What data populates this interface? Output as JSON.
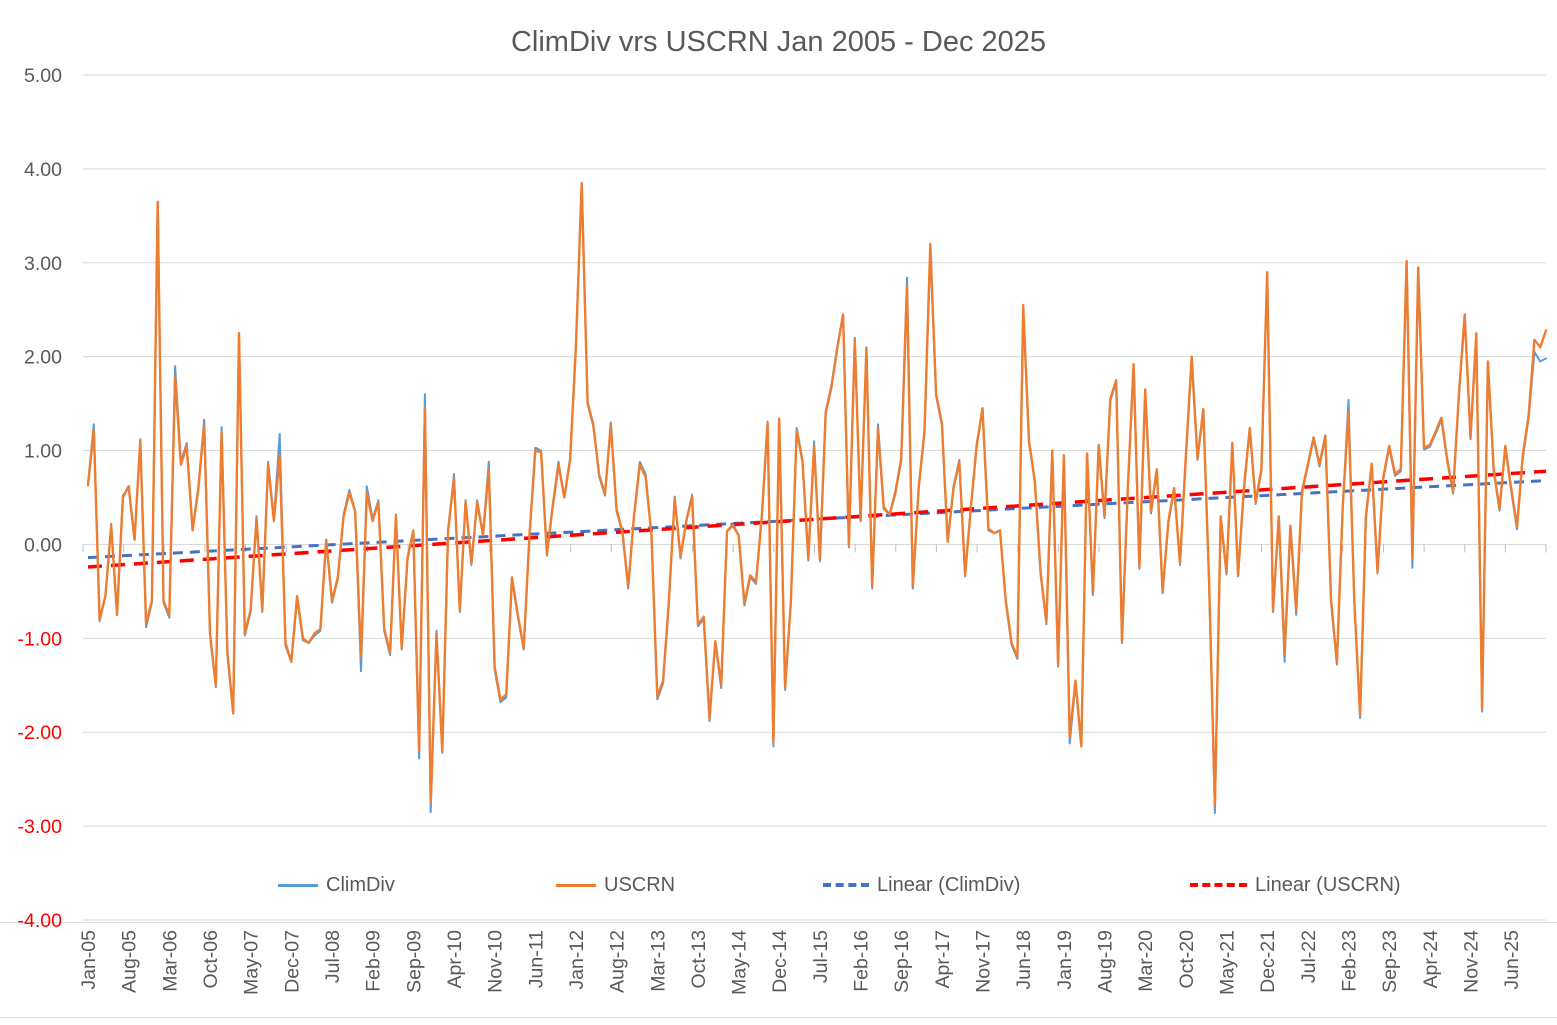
{
  "title": "ClimDiv vrs USCRN Jan 2005 - Dec 2025",
  "legend": {
    "items": [
      {
        "label": "ClimDiv",
        "marker": "solid-blue-line",
        "color": "#5B9BD5"
      },
      {
        "label": "USCRN",
        "marker": "solid-orange-line",
        "color": "#ED7D31"
      },
      {
        "label": "Linear (ClimDiv)",
        "marker": "dashed-blue-line",
        "color": "#4472C4"
      },
      {
        "label": "Linear (USCRN)",
        "marker": "dashed-red-line",
        "color": "#FF0000"
      }
    ]
  },
  "axis_style": {
    "positive_label_color": "#595959",
    "negative_label_color": "#FF0000",
    "grid_color": "#D9D9D9",
    "tick_color": "#BFBFBF",
    "x_label_color": "#595959"
  },
  "chart_data": {
    "type": "line",
    "title": "ClimDiv vrs USCRN Jan 2005 - Dec 2025",
    "xlabel": "",
    "ylabel": "",
    "ylim": [
      -4,
      5
    ],
    "grid": true,
    "legend_position": "bottom",
    "months_total": 252,
    "x_first_month": "Jan-05",
    "x_last_month": "Dec-25",
    "x_tick_interval_months": 7,
    "y_tick_labels": [
      "5.00",
      "4.00",
      "3.00",
      "2.00",
      "1.00",
      "0.00",
      "-1.00",
      "-2.00",
      "-3.00",
      "-4.00"
    ],
    "x_tick_labels": [
      "Jan-05",
      "Aug-05",
      "Mar-06",
      "Oct-06",
      "May-07",
      "Dec-07",
      "Jul-08",
      "Feb-09",
      "Sep-09",
      "Apr-10",
      "Nov-10",
      "Jun-11",
      "Jan-12",
      "Aug-12",
      "Mar-13",
      "Oct-13",
      "May-14",
      "Dec-14",
      "Jul-15",
      "Feb-16",
      "Sep-16",
      "Apr-17",
      "Nov-17",
      "Jun-18",
      "Jan-19",
      "Aug-19",
      "Mar-20",
      "Oct-20",
      "May-21",
      "Dec-21",
      "Jul-22",
      "Feb-23",
      "Sep-23",
      "Apr-24",
      "Nov-24",
      "Jun-25"
    ],
    "series": [
      {
        "name": "ClimDiv",
        "color": "#5B9BD5",
        "width": 2,
        "values": [
          0.65,
          1.28,
          -0.82,
          -0.55,
          0.22,
          -0.73,
          0.52,
          0.6,
          0.05,
          1.12,
          -0.88,
          -0.62,
          3.65,
          -0.62,
          -0.78,
          1.9,
          0.88,
          1.08,
          0.15,
          0.62,
          1.33,
          -0.97,
          -1.52,
          1.25,
          -1.18,
          -1.8,
          2.25,
          -0.97,
          -0.72,
          0.3,
          -0.72,
          0.88,
          0.27,
          1.18,
          -1.08,
          -1.25,
          -0.57,
          -1.02,
          -1.05,
          -0.97,
          -0.92,
          0.05,
          -0.62,
          -0.37,
          0.32,
          0.58,
          0.35,
          -1.35,
          0.62,
          0.27,
          0.47,
          -0.92,
          -1.18,
          0.32,
          -1.12,
          -0.17,
          0.15,
          -2.28,
          1.6,
          -2.85,
          -0.92,
          -2.22,
          0.15,
          0.75,
          -0.72,
          0.47,
          -0.22,
          0.47,
          0.1,
          0.88,
          -1.33,
          -1.68,
          -1.63,
          -0.37,
          -0.77,
          -1.12,
          0.1,
          1.03,
          1.0,
          -0.12,
          0.42,
          0.88,
          0.5,
          0.92,
          2.12,
          3.85,
          1.52,
          1.28,
          0.72,
          0.52,
          1.3,
          0.35,
          0.12,
          -0.47,
          0.3,
          0.88,
          0.75,
          0.1,
          -1.65,
          -1.48,
          -0.62,
          0.51,
          -0.15,
          0.25,
          0.53,
          -0.87,
          -0.8,
          -1.88,
          -1.05,
          -1.53,
          0.14,
          0.22,
          0.1,
          -0.65,
          -0.35,
          -0.42,
          0.3,
          1.31,
          -2.15,
          1.3,
          -1.55,
          -0.62,
          1.24,
          0.9,
          -0.17,
          1.1,
          -0.18,
          1.42,
          1.7,
          2.11,
          2.45,
          -0.03,
          2.2,
          0.25,
          2.1,
          -0.47,
          1.28,
          0.4,
          0.32,
          0.57,
          0.92,
          2.84,
          -0.47,
          0.62,
          1.22,
          3.12,
          1.58,
          1.27,
          0.03,
          0.62,
          0.9,
          -0.34,
          0.4,
          1.07,
          1.45,
          0.15,
          0.12,
          0.15,
          -0.62,
          -1.07,
          -1.22,
          2.5,
          1.08,
          0.66,
          -0.32,
          -0.85,
          0.98,
          -1.3,
          0.92,
          -2.12,
          -1.48,
          -2.15,
          0.95,
          -0.54,
          1.04,
          0.28,
          1.53,
          1.73,
          -1.05,
          0.58,
          1.9,
          -0.26,
          1.63,
          0.33,
          0.78,
          -0.52,
          0.23,
          0.58,
          -0.22,
          0.93,
          1.95,
          0.9,
          1.42,
          -0.42,
          -2.86,
          0.28,
          -0.32,
          1.06,
          -0.34,
          0.58,
          1.22,
          0.43,
          0.78,
          2.88,
          -0.72,
          0.28,
          -1.25,
          0.18,
          -0.75,
          0.55,
          0.83,
          1.12,
          0.83,
          1.14,
          -0.62,
          -1.28,
          0.38,
          1.54,
          -0.62,
          -1.85,
          0.28,
          0.84,
          -0.31,
          0.7,
          1.03,
          0.73,
          0.78,
          3.0,
          -0.25,
          2.93,
          1.01,
          1.04,
          1.18,
          1.33,
          0.88,
          0.54,
          1.58,
          2.43,
          1.12,
          2.2,
          -1.78,
          1.93,
          0.78,
          0.36,
          1.03,
          0.58,
          0.16,
          0.92,
          1.34,
          2.05,
          1.95,
          1.98
        ]
      },
      {
        "name": "USCRN",
        "color": "#ED7D31",
        "width": 2.4,
        "values": [
          0.63,
          1.22,
          -0.8,
          -0.55,
          0.2,
          -0.75,
          0.5,
          0.62,
          0.05,
          1.1,
          -0.85,
          -0.6,
          3.65,
          -0.6,
          -0.75,
          1.78,
          0.85,
          1.05,
          0.15,
          0.6,
          1.28,
          -0.95,
          -1.5,
          1.2,
          -1.15,
          -1.8,
          2.25,
          -0.95,
          -0.7,
          0.28,
          -0.7,
          0.85,
          0.25,
          0.95,
          -1.05,
          -1.25,
          -0.55,
          -1.0,
          -1.05,
          -0.95,
          -0.9,
          0.05,
          -0.6,
          -0.35,
          0.3,
          0.55,
          0.35,
          -1.2,
          0.55,
          0.25,
          0.45,
          -0.9,
          -1.15,
          0.3,
          -1.1,
          -0.15,
          0.15,
          -2.2,
          1.45,
          -2.75,
          -0.95,
          -2.2,
          0.15,
          0.7,
          -0.7,
          0.45,
          -0.2,
          0.45,
          0.1,
          0.8,
          -1.3,
          -1.65,
          -1.6,
          -0.35,
          -0.75,
          -1.1,
          0.1,
          1.0,
          0.98,
          -0.1,
          0.4,
          0.85,
          0.5,
          0.9,
          2.1,
          3.85,
          1.5,
          1.26,
          0.74,
          0.54,
          1.28,
          0.37,
          0.14,
          -0.45,
          0.3,
          0.85,
          0.72,
          0.1,
          -1.62,
          -1.45,
          -0.6,
          0.49,
          -0.13,
          0.25,
          0.51,
          -0.85,
          -0.77,
          -1.85,
          -1.03,
          -1.5,
          0.14,
          0.2,
          0.1,
          -0.63,
          -0.33,
          -0.4,
          0.3,
          1.29,
          -2.1,
          1.34,
          -1.53,
          -0.6,
          1.22,
          0.88,
          -0.15,
          1.04,
          -0.16,
          1.4,
          1.68,
          2.09,
          2.45,
          -0.01,
          2.18,
          0.25,
          2.08,
          -0.45,
          1.23,
          0.38,
          0.32,
          0.55,
          0.9,
          2.75,
          -0.45,
          0.6,
          1.2,
          3.2,
          1.6,
          1.29,
          0.03,
          0.6,
          0.88,
          -0.32,
          0.4,
          1.05,
          1.45,
          0.17,
          0.12,
          0.15,
          -0.6,
          -1.05,
          -1.2,
          2.55,
          1.1,
          0.68,
          -0.3,
          -0.83,
          1.0,
          -1.28,
          0.95,
          -2.05,
          -1.45,
          -2.15,
          0.97,
          -0.52,
          1.06,
          0.3,
          1.55,
          1.75,
          -1.03,
          0.6,
          1.92,
          -0.24,
          1.65,
          0.35,
          0.8,
          -0.5,
          0.25,
          0.6,
          -0.2,
          0.95,
          2.0,
          0.92,
          1.44,
          -0.4,
          -2.78,
          0.3,
          -0.3,
          1.08,
          -0.32,
          0.6,
          1.24,
          0.45,
          0.8,
          2.9,
          -0.7,
          0.3,
          -1.16,
          0.2,
          -0.7,
          0.57,
          0.85,
          1.14,
          0.85,
          1.16,
          -0.6,
          -1.26,
          0.4,
          1.41,
          -0.6,
          -1.82,
          0.3,
          0.86,
          -0.29,
          0.72,
          1.05,
          0.75,
          0.8,
          3.02,
          -0.15,
          2.95,
          1.03,
          1.06,
          1.2,
          1.35,
          0.9,
          0.56,
          1.6,
          2.45,
          1.14,
          2.25,
          -1.75,
          1.95,
          0.8,
          0.38,
          1.05,
          0.6,
          0.19,
          0.95,
          1.37,
          2.18,
          2.1,
          2.28
        ]
      }
    ],
    "trendlines": [
      {
        "name": "Linear (ClimDiv)",
        "color": "#4472C4",
        "start": -0.14,
        "end": 0.68,
        "dash": "10 7",
        "width": 3
      },
      {
        "name": "Linear (USCRN)",
        "color": "#FF0000",
        "start": -0.24,
        "end": 0.78,
        "dash": "14 9",
        "width": 3.5
      }
    ]
  }
}
